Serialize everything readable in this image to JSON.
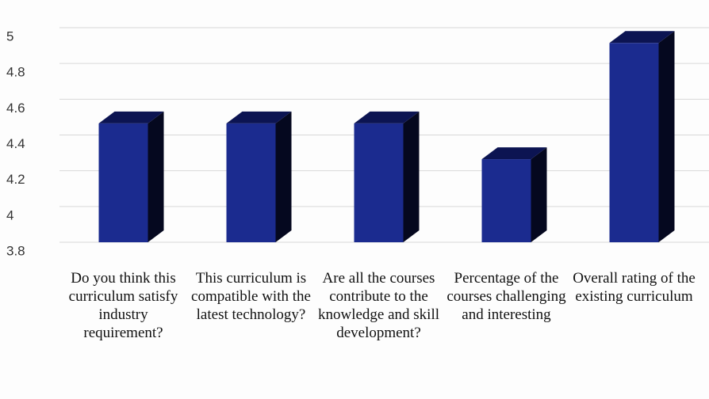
{
  "chart_data": {
    "type": "bar3d",
    "categories": [
      "Do you think this curriculum satisfy industry requirement?",
      "This curriculum is compatible with the latest technology?",
      "Are all the courses contribute to the knowledge and skill development?",
      "Percentage of the courses challenging and interesting",
      "Overall rating of the existing curriculum"
    ],
    "values": [
      4.5,
      4.5,
      4.5,
      4.3,
      4.95
    ],
    "color": "#1b2b8f",
    "ylim": [
      3.8,
      5
    ],
    "yticks": [
      3.8,
      4,
      4.2,
      4.4,
      4.6,
      4.8,
      5
    ],
    "grid": true
  }
}
